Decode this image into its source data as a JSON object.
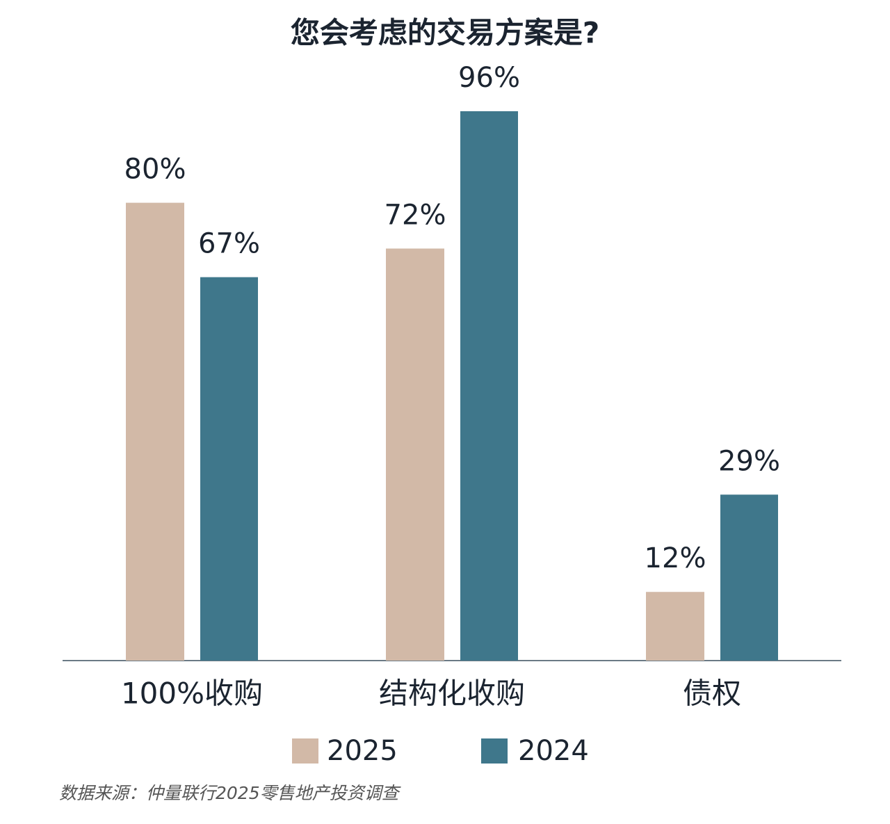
{
  "chart_data": {
    "type": "bar",
    "title": "您会考虑的交易方案是?",
    "categories": [
      "100%收购",
      "结构化收购",
      "债权"
    ],
    "series": [
      {
        "name": "2025",
        "color": "#d2b9a7",
        "values": [
          80,
          72,
          12
        ],
        "value_labels": [
          "80%",
          "72%",
          "12%"
        ]
      },
      {
        "name": "2024",
        "color": "#3f778b",
        "values": [
          67,
          96,
          29
        ],
        "value_labels": [
          "67%",
          "96%",
          "29%"
        ]
      }
    ],
    "source": "数据来源：仲量联行2025零售地产投资调查"
  }
}
